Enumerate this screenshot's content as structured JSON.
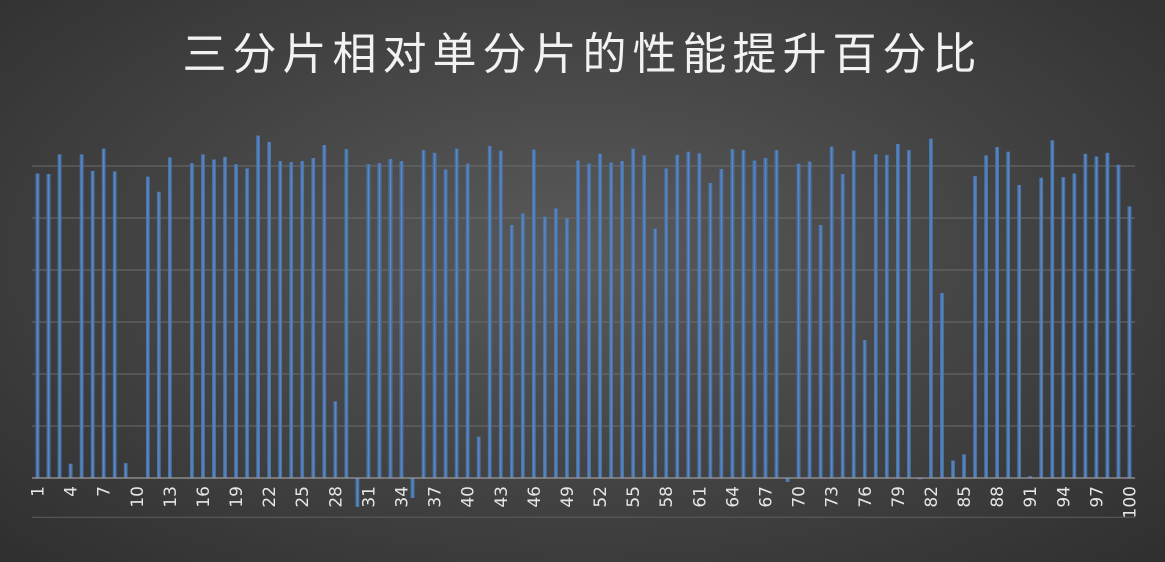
{
  "chart_data": {
    "type": "bar",
    "title": "三分片相对单分片的性能提升百分比",
    "xlabel": "",
    "ylabel": "",
    "legend": "none",
    "grid": true,
    "ylim": [
      -0.6,
      6.8
    ],
    "gridline_values": [
      0,
      1,
      2,
      3,
      4,
      5,
      6
    ],
    "tick_label_step": 3,
    "categories": [
      1,
      2,
      3,
      4,
      5,
      6,
      7,
      8,
      9,
      10,
      11,
      12,
      13,
      14,
      15,
      16,
      17,
      18,
      19,
      20,
      21,
      22,
      23,
      24,
      25,
      26,
      27,
      28,
      29,
      30,
      31,
      32,
      33,
      34,
      35,
      36,
      37,
      38,
      39,
      40,
      41,
      42,
      43,
      44,
      45,
      46,
      47,
      48,
      49,
      50,
      51,
      52,
      53,
      54,
      55,
      56,
      57,
      58,
      59,
      60,
      61,
      62,
      63,
      64,
      65,
      66,
      67,
      68,
      69,
      70,
      71,
      72,
      73,
      74,
      75,
      76,
      77,
      78,
      79,
      80,
      81,
      82,
      83,
      84,
      85,
      86,
      87,
      88,
      89,
      90,
      91,
      92,
      93,
      94,
      95,
      96,
      97,
      98,
      99,
      100
    ],
    "values": [
      5.85,
      5.84,
      6.22,
      0.27,
      6.22,
      5.9,
      6.33,
      5.89,
      0.28,
      0,
      5.79,
      5.5,
      6.16,
      0,
      6.05,
      6.22,
      6.12,
      6.17,
      6.03,
      5.95,
      6.58,
      6.46,
      6.09,
      6.07,
      6.09,
      6.15,
      6.4,
      1.47,
      6.32,
      -0.55,
      6.03,
      6.05,
      6.13,
      6.09,
      -0.38,
      6.3,
      6.25,
      5.93,
      6.33,
      6.04,
      0.79,
      6.38,
      6.29,
      4.86,
      5.08,
      6.31,
      5.02,
      5.18,
      4.99,
      6.1,
      6.04,
      6.23,
      6.06,
      6.09,
      6.33,
      6.2,
      4.79,
      5.95,
      6.21,
      6.27,
      6.24,
      5.67,
      5.94,
      6.32,
      6.3,
      6.1,
      6.15,
      6.3,
      -0.07,
      6.04,
      6.08,
      4.86,
      6.37,
      5.84,
      6.29,
      2.65,
      6.22,
      6.21,
      6.42,
      6.3,
      -0.02,
      6.52,
      3.55,
      0.33,
      0.45,
      5.8,
      6.2,
      6.36,
      6.27,
      5.63,
      0.03,
      5.77,
      6.49,
      5.78,
      5.85,
      6.23,
      6.18,
      6.25,
      6.02,
      5.22
    ],
    "bar_color": "#4f81bd"
  }
}
